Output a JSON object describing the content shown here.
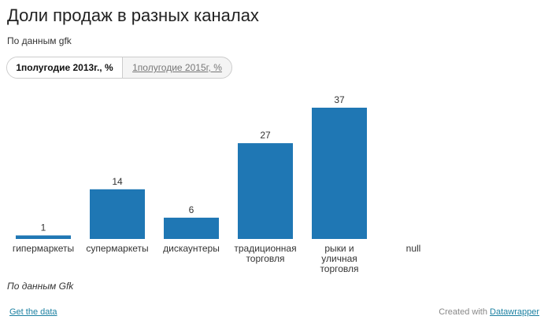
{
  "header": {
    "title": "Доли продаж в разных каналах",
    "subtitle": "По данным gfk"
  },
  "tabs": [
    {
      "label": "1полугодие 2013г., %",
      "active": true
    },
    {
      "label": "1полугодие 2015г, %",
      "active": false
    }
  ],
  "chart_data": {
    "type": "bar",
    "categories": [
      [
        "гипермаркеты"
      ],
      [
        "супермаркеты"
      ],
      [
        "дискаунтеры"
      ],
      [
        "традиционная",
        "торговля"
      ],
      [
        "рыки и",
        "уличная",
        "торговля"
      ],
      [
        "null"
      ]
    ],
    "values": [
      1,
      14,
      6,
      27,
      37,
      null
    ],
    "value_labels": [
      "1",
      "14",
      "6",
      "27",
      "37",
      ""
    ],
    "title": "",
    "xlabel": "",
    "ylabel": "",
    "ylim": [
      0,
      37
    ],
    "grid": false,
    "bar_color": "#1f77b4"
  },
  "notes": "По данным Gfk",
  "footer": {
    "get_data": "Get the data",
    "created_with": "Created with",
    "brand": "Datawrapper"
  },
  "colors": {
    "bar": "#1f77b4",
    "link": "#1d81a2"
  }
}
